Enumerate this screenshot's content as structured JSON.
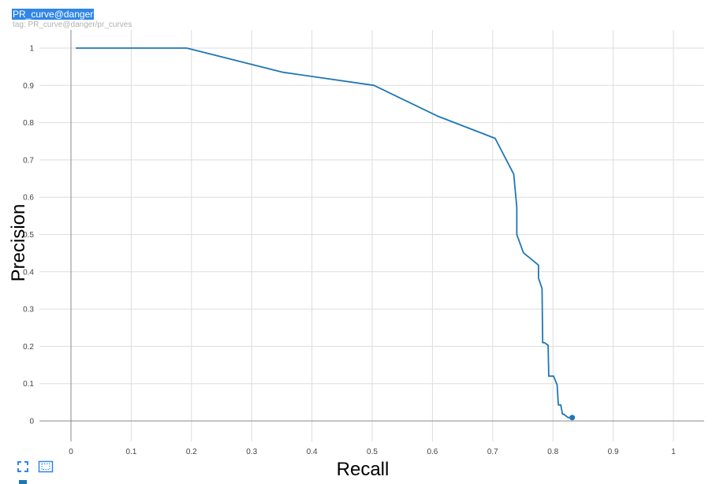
{
  "header": {
    "title": "PR_curve@danger",
    "tag": "tag: PR_curve@danger/pr_curves"
  },
  "toolbar": {
    "fit_icon": "fit-domain-icon",
    "select_icon": "selection-zoom-icon"
  },
  "colors": {
    "series": "#1f77b4",
    "title_bg": "#2f86e8",
    "grid": "#dddddd",
    "axis": "#888888"
  },
  "chart_data": {
    "type": "line",
    "xlabel": "Recall",
    "ylabel": "Precision",
    "xlim": [
      -0.05,
      1.05
    ],
    "ylim": [
      -0.06,
      1.06
    ],
    "xticks": [
      0,
      0.1,
      0.2,
      0.3,
      0.4,
      0.5,
      0.6,
      0.7,
      0.8,
      0.9,
      1
    ],
    "xtick_labels": [
      "0",
      "0.1",
      "0.2",
      "0.3",
      "0.4",
      "0.5",
      "0.6",
      "0.7",
      "0.8",
      "0.9",
      "1"
    ],
    "yticks": [
      0,
      0.1,
      0.2,
      0.3,
      0.4,
      0.5,
      0.6,
      0.7,
      0.8,
      0.9,
      1
    ],
    "ytick_labels": [
      "0",
      "0.1",
      "0.2",
      "0.3",
      "0.4",
      "0.5",
      "0.6",
      "0.7",
      "0.8",
      "0.9",
      "1"
    ],
    "grid": true,
    "series": [
      {
        "x": [
          0.008,
          0.192,
          0.352,
          0.503,
          0.608,
          0.704,
          0.735,
          0.74,
          0.74,
          0.751,
          0.776,
          0.776,
          0.782,
          0.783,
          0.786,
          0.792,
          0.793,
          0.801,
          0.807,
          0.809,
          0.813,
          0.816,
          0.818,
          0.825,
          0.832
        ],
        "y": [
          1.0,
          1.0,
          0.935,
          0.9,
          0.818,
          0.758,
          0.662,
          0.573,
          0.5,
          0.451,
          0.418,
          0.383,
          0.355,
          0.21,
          0.21,
          0.203,
          0.12,
          0.12,
          0.097,
          0.043,
          0.043,
          0.018,
          0.018,
          0.009,
          0.009
        ]
      }
    ],
    "end_marker": {
      "x": 0.832,
      "y": 0.009
    }
  }
}
